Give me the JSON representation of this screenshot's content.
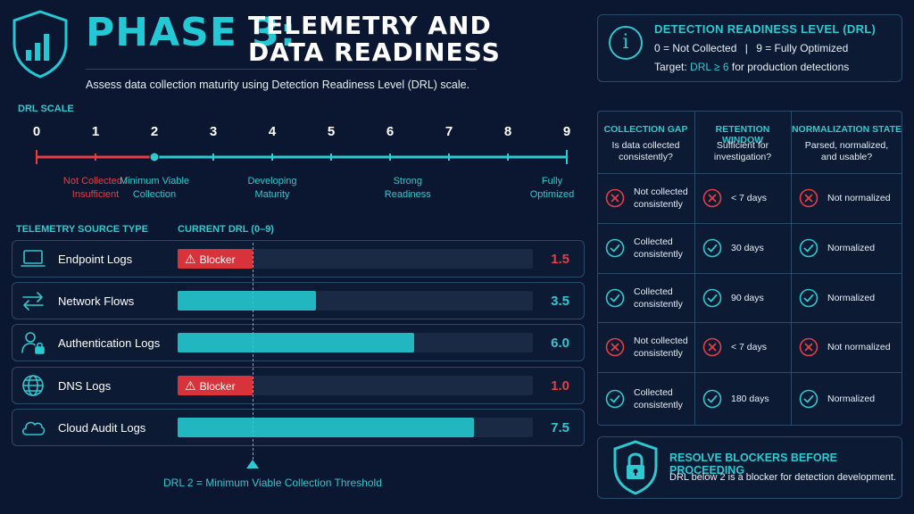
{
  "header": {
    "phase": "PHASE 3:",
    "title_line1": "TELEMETRY AND",
    "title_line2": "DATA READINESS",
    "subtitle": "Assess data collection maturity using Detection Readiness Level (DRL) scale.",
    "logo_icon": "shield-bar-chart-icon"
  },
  "drl_info": {
    "icon": "info-icon",
    "icon_glyph": "i",
    "title": "DETECTION READINESS LEVEL (DRL)",
    "legend_0": "0 = Not Collected",
    "legend_sep": "|",
    "legend_9": "9 = Fully Optimized",
    "target_prefix": "Target: ",
    "target_value": "DRL ≥ 6",
    "target_suffix": " for production detections"
  },
  "scale": {
    "label": "DRL SCALE",
    "ticks": [
      "0",
      "1",
      "2",
      "3",
      "4",
      "5",
      "6",
      "7",
      "8",
      "9"
    ],
    "marker_value": 2,
    "captions": [
      {
        "text_1": "Not Collected /",
        "text_2": "Insufficient",
        "at": 1,
        "color": "#e53e45"
      },
      {
        "text_1": "Minimum Viable",
        "text_2": "Collection",
        "at": 2,
        "color": "#2ec8d0"
      },
      {
        "text_1": "Developing",
        "text_2": "Maturity",
        "at": 4,
        "color": "#2ec8d0"
      },
      {
        "text_1": "Strong",
        "text_2": "Readiness",
        "at": 6.3,
        "color": "#2ec8d0"
      },
      {
        "text_1": "Fully",
        "text_2": "Optimized",
        "at": 8.75,
        "color": "#2ec8d0"
      }
    ],
    "red_color": "#e53e45",
    "teal_color": "#2ec8d0"
  },
  "sources": {
    "col_type": "TELEMETRY SOURCE TYPE",
    "col_drl": "CURRENT DRL (0–9)",
    "max": 9,
    "rows": [
      {
        "name": "Endpoint Logs",
        "icon": "laptop-icon",
        "value": "1.5",
        "drl": 1.5,
        "blocker": true,
        "blocker_label": "Blocker"
      },
      {
        "name": "Network Flows",
        "icon": "arrows-exchange-icon",
        "value": "3.5",
        "drl": 3.5,
        "blocker": false
      },
      {
        "name": "Authentication Logs",
        "icon": "user-lock-icon",
        "value": "6.0",
        "drl": 6.0,
        "blocker": false
      },
      {
        "name": "DNS Logs",
        "icon": "globe-icon",
        "value": "1.0",
        "drl": 1.0,
        "blocker": true,
        "blocker_label": "Blocker"
      },
      {
        "name": "Cloud Audit Logs",
        "icon": "cloud-icon",
        "value": "7.5",
        "drl": 7.5,
        "blocker": false
      }
    ],
    "threshold_text": "DRL 2 = Minimum Viable Collection Threshold"
  },
  "gap_table": {
    "headers": [
      {
        "title": "COLLECTION GAP",
        "sub_1": "Is data collected",
        "sub_2": "consistently?"
      },
      {
        "title": "RETENTION WINDOW",
        "sub_1": "Sufficient for",
        "sub_2": "investigation?"
      },
      {
        "title": "NORMALIZATION STATE",
        "sub_1": "Parsed, normalized,",
        "sub_2": "and usable?"
      }
    ],
    "rows": [
      {
        "collection_ok": false,
        "collection_1": "Not collected",
        "collection_2": "consistently",
        "retention_ok": false,
        "retention": "< 7 days",
        "normalized_ok": false,
        "normalized": "Not normalized"
      },
      {
        "collection_ok": true,
        "collection_1": "Collected",
        "collection_2": "consistently",
        "retention_ok": true,
        "retention": "30 days",
        "normalized_ok": true,
        "normalized": "Normalized"
      },
      {
        "collection_ok": true,
        "collection_1": "Collected",
        "collection_2": "consistently",
        "retention_ok": true,
        "retention": "90 days",
        "normalized_ok": true,
        "normalized": "Normalized"
      },
      {
        "collection_ok": false,
        "collection_1": "Not collected",
        "collection_2": "consistently",
        "retention_ok": false,
        "retention": "< 7 days",
        "normalized_ok": false,
        "normalized": "Not normalized"
      },
      {
        "collection_ok": true,
        "collection_1": "Collected",
        "collection_2": "consistently",
        "retention_ok": true,
        "retention": "180 days",
        "normalized_ok": true,
        "normalized": "Normalized"
      }
    ],
    "ok_icon": "check-circle-icon",
    "bad_icon": "x-circle-icon"
  },
  "footer_box": {
    "icon": "shield-lock-icon",
    "title": "RESOLVE BLOCKERS BEFORE PROCEEDING",
    "subtitle": "DRL below 2 is a blocker for detection development."
  },
  "colors": {
    "background": "#0b1730",
    "accent": "#2ec8d0",
    "danger": "#e53e45",
    "bar_fill": "#22b6c0",
    "bar_track": "#1a2a44"
  }
}
